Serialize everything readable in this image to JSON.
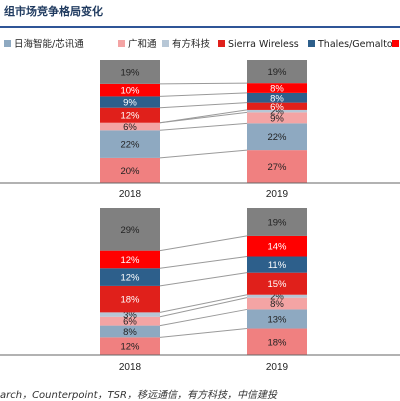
{
  "header": {
    "title": "组市场竞争格局变化"
  },
  "footer": {
    "source": "arch，Counterpoint，TSR，移远通信，有方科技，中信建投"
  },
  "legend": {
    "items": [
      {
        "label": "日海智能/芯讯通",
        "color": "#8ea9c1"
      },
      {
        "label": "广和通",
        "color": "#f4a4a4"
      },
      {
        "label": "有方科技",
        "color": "#b7c7d6"
      },
      {
        "label": "Sierra Wireless",
        "color": "#e0201b"
      },
      {
        "label": "Thales/Gemalto",
        "color": "#2d5f8b"
      },
      {
        "label": "",
        "color": "#ff0000"
      }
    ]
  },
  "chart_data": [
    {
      "type": "bar",
      "stacked": true,
      "categories": [
        "",
        "2018",
        "2019",
        ""
      ],
      "series": [
        {
          "name": "日海智能/芯讯通",
          "values": [
            null,
            20,
            27,
            null
          ],
          "color": "#f08080"
        },
        {
          "name": "广和通",
          "values": [
            null,
            22,
            22,
            null
          ],
          "color": "#8ea9c1"
        },
        {
          "name": "有方科技",
          "values": [
            null,
            6,
            9,
            null
          ],
          "color": "#f4a4a4"
        },
        {
          "name": "Sierra Wireless",
          "values": [
            null,
            null,
            2,
            null
          ],
          "color": "#b7c7d6"
        },
        {
          "name": "Thales/Gemalto",
          "values": [
            null,
            12,
            6,
            null
          ],
          "color": "#e0201b"
        },
        {
          "name": "",
          "values": [
            null,
            9,
            8,
            null
          ],
          "color": "#2d5f8b"
        },
        {
          "name": "",
          "values": [
            null,
            10,
            8,
            null
          ],
          "color": "#ff0000"
        },
        {
          "name": "",
          "values": [
            null,
            19,
            19,
            null
          ],
          "color": "#808080"
        }
      ]
    },
    {
      "type": "bar",
      "stacked": true,
      "categories": [
        "",
        "2018",
        "2019",
        ""
      ],
      "series": [
        {
          "name": "",
          "values": [
            null,
            12,
            18,
            null
          ],
          "color": "#f08080"
        },
        {
          "name": "",
          "values": [
            null,
            8,
            13,
            null
          ],
          "color": "#8ea9c1"
        },
        {
          "name": "",
          "values": [
            null,
            6,
            8,
            null
          ],
          "color": "#f4a4a4"
        },
        {
          "name": "",
          "values": [
            null,
            3,
            2,
            null
          ],
          "color": "#b7c7d6"
        },
        {
          "name": "",
          "values": [
            null,
            18,
            15,
            null
          ],
          "color": "#e0201b"
        },
        {
          "name": "",
          "values": [
            null,
            12,
            11,
            null
          ],
          "color": "#2d5f8b"
        },
        {
          "name": "",
          "values": [
            null,
            12,
            14,
            null
          ],
          "color": "#ff0000"
        },
        {
          "name": "",
          "values": [
            null,
            29,
            19,
            null
          ],
          "color": "#808080"
        }
      ]
    }
  ]
}
